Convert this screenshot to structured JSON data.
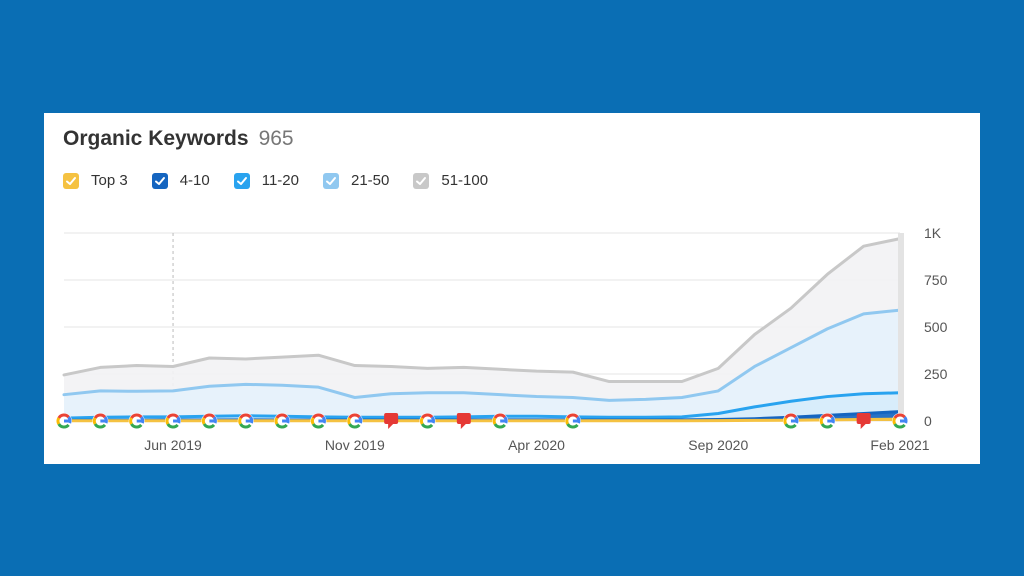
{
  "header": {
    "title": "Organic Keywords",
    "count": "965"
  },
  "legend": [
    {
      "label": "Top 3",
      "color": "#f5c242",
      "checked": true
    },
    {
      "label": "4-10",
      "color": "#1565c0",
      "checked": true
    },
    {
      "label": "11-20",
      "color": "#29a3ef",
      "checked": true
    },
    {
      "label": "21-50",
      "color": "#90c8f0",
      "checked": true
    },
    {
      "label": "51-100",
      "color": "#c8c8c8",
      "checked": true
    }
  ],
  "chart_data": {
    "type": "area",
    "title": "Organic Keywords",
    "xlabel": "",
    "ylabel": "",
    "ylim": [
      0,
      1000
    ],
    "y_ticks": [
      {
        "value": 0,
        "label": "0"
      },
      {
        "value": 250,
        "label": "250"
      },
      {
        "value": 500,
        "label": "500"
      },
      {
        "value": 750,
        "label": "750"
      },
      {
        "value": 1000,
        "label": "1K"
      }
    ],
    "x_ticks": [
      {
        "x": 3,
        "label": "Jun 2019"
      },
      {
        "x": 8,
        "label": "Nov 2019"
      },
      {
        "x": 13,
        "label": "Apr 2020"
      },
      {
        "x": 18,
        "label": "Sep 2020"
      },
      {
        "x": 23,
        "label": "Feb 2021"
      }
    ],
    "x": [
      "Mar 2019",
      "Apr 2019",
      "May 2019",
      "Jun 2019",
      "Jul 2019",
      "Aug 2019",
      "Sep 2019",
      "Oct 2019",
      "Nov 2019",
      "Dec 2019",
      "Jan 2020",
      "Feb 2020",
      "Mar 2020",
      "Apr 2020",
      "May 2020",
      "Jun 2020",
      "Jul 2020",
      "Aug 2020",
      "Sep 2020",
      "Oct 2020",
      "Nov 2020",
      "Dec 2020",
      "Jan 2021",
      "Feb 2021"
    ],
    "grid": true,
    "legend_position": "top-left",
    "series": [
      {
        "name": "51-100",
        "color": "#c8c8c8",
        "fill": "#f2f2f4",
        "values": [
          245,
          285,
          295,
          290,
          335,
          330,
          340,
          350,
          295,
          290,
          280,
          285,
          275,
          265,
          260,
          210,
          210,
          210,
          280,
          460,
          600,
          780,
          930,
          970
        ]
      },
      {
        "name": "21-50",
        "color": "#90c8f0",
        "fill": "#e6f2fc",
        "values": [
          140,
          160,
          158,
          160,
          185,
          195,
          190,
          180,
          125,
          145,
          150,
          150,
          140,
          130,
          125,
          110,
          115,
          125,
          160,
          290,
          390,
          490,
          570,
          590
        ]
      },
      {
        "name": "11-20",
        "color": "#29a3ef",
        "fill": "#d6ecfb",
        "values": [
          15,
          20,
          22,
          22,
          25,
          28,
          25,
          22,
          20,
          20,
          20,
          22,
          25,
          25,
          22,
          20,
          20,
          22,
          40,
          75,
          105,
          130,
          145,
          150
        ]
      },
      {
        "name": "4-10",
        "color": "#1565c0",
        "fill": "#1565c0",
        "values": [
          3,
          4,
          4,
          5,
          5,
          6,
          5,
          5,
          5,
          5,
          5,
          6,
          6,
          6,
          5,
          5,
          5,
          6,
          8,
          12,
          20,
          30,
          40,
          50
        ]
      },
      {
        "name": "Top 3",
        "color": "#f5c242",
        "fill": "#f5c242",
        "values": [
          1,
          1,
          1,
          1,
          1,
          1,
          1,
          1,
          1,
          1,
          1,
          1,
          1,
          1,
          1,
          1,
          1,
          1,
          2,
          3,
          4,
          6,
          8,
          10
        ]
      }
    ],
    "markers": [
      {
        "x": 0,
        "kind": "google"
      },
      {
        "x": 1,
        "kind": "google"
      },
      {
        "x": 2,
        "kind": "google"
      },
      {
        "x": 3,
        "kind": "google"
      },
      {
        "x": 4,
        "kind": "google"
      },
      {
        "x": 5,
        "kind": "google"
      },
      {
        "x": 6,
        "kind": "google"
      },
      {
        "x": 7,
        "kind": "google"
      },
      {
        "x": 8,
        "kind": "google"
      },
      {
        "x": 9,
        "kind": "note"
      },
      {
        "x": 10,
        "kind": "google"
      },
      {
        "x": 11,
        "kind": "note"
      },
      {
        "x": 12,
        "kind": "google"
      },
      {
        "x": 14,
        "kind": "google"
      },
      {
        "x": 20,
        "kind": "google"
      },
      {
        "x": 21,
        "kind": "google"
      },
      {
        "x": 22,
        "kind": "note"
      },
      {
        "x": 23,
        "kind": "google"
      }
    ],
    "hover_x": 3
  }
}
